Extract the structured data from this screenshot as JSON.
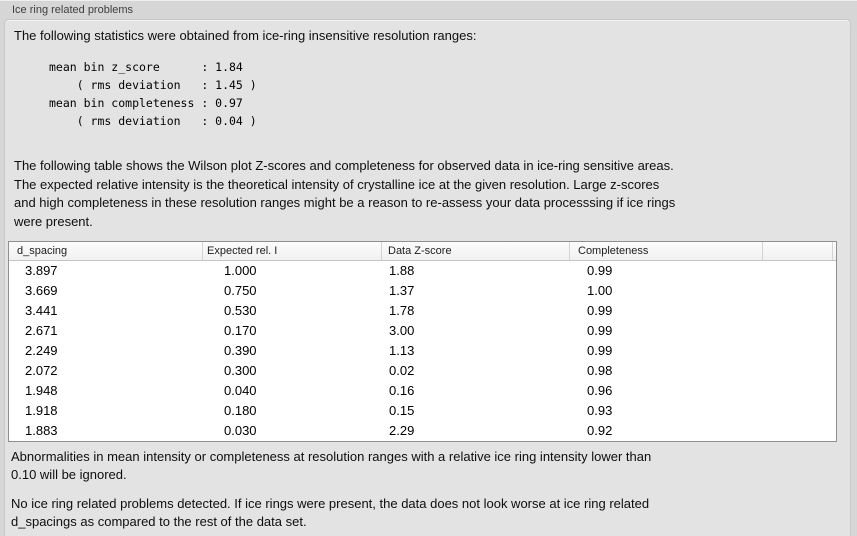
{
  "window": {
    "title": "Ice ring related problems"
  },
  "intro": "The following statistics were obtained from ice-ring insensitive resolution ranges:",
  "stats_block": {
    "lines": [
      "mean bin z_score      : 1.84",
      "    ( rms deviation   : 1.45 )",
      "mean bin completeness : 0.97",
      "    ( rms deviation   : 0.04 )"
    ]
  },
  "description_lines": [
    "The following table shows the Wilson plot Z-scores and completeness for observed data in ice-ring sensitive areas.",
    "The expected relative intensity is the theoretical intensity of crystalline ice at the given resolution. Large z-scores",
    "and high completeness in these resolution ranges might be a reason to re-assess your data processsing if ice rings",
    "were present."
  ],
  "table": {
    "columns": [
      "d_spacing",
      "Expected rel. I",
      "Data Z-score",
      "Completeness",
      ""
    ],
    "rows": [
      [
        "3.897",
        "1.000",
        "1.88",
        "0.99"
      ],
      [
        "3.669",
        "0.750",
        "1.37",
        "1.00"
      ],
      [
        "3.441",
        "0.530",
        "1.78",
        "0.99"
      ],
      [
        "2.671",
        "0.170",
        "3.00",
        "0.99"
      ],
      [
        "2.249",
        "0.390",
        "1.13",
        "0.99"
      ],
      [
        "2.072",
        "0.300",
        "0.02",
        "0.98"
      ],
      [
        "1.948",
        "0.040",
        "0.16",
        "0.96"
      ],
      [
        "1.918",
        "0.180",
        "0.15",
        "0.93"
      ],
      [
        "1.883",
        "0.030",
        "2.29",
        "0.92"
      ]
    ]
  },
  "note_lines": [
    "Abnormalities in mean intensity or completeness at resolution ranges with a relative ice ring intensity lower than",
    "0.10 will be ignored."
  ],
  "conclusion_lines": [
    "No ice ring related problems detected. If ice rings were present, the data does not look worse at ice ring related",
    "d_spacings as compared to the rest of the data set."
  ]
}
